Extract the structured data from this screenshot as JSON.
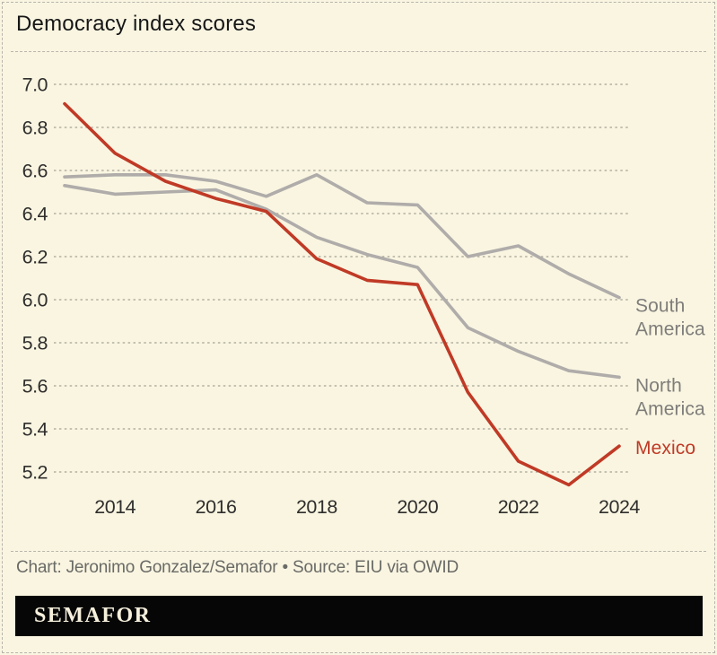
{
  "title": "Democracy index scores",
  "footer": {
    "credit": "Chart: Jeronimo Gonzalez/Semafor • Source: EIU via OWID",
    "brand": "SEMAFOR"
  },
  "colors": {
    "background": "#f9f5e1",
    "mexico_red": "#c03a26",
    "region_gray": "#afacaa",
    "series_label_gray": "#7f7d7a",
    "grid": "#b3b0a1",
    "axis_text": "#2f2e2c",
    "title_text": "#171717",
    "credit_text": "#6a6a66",
    "logo_bar": "#060606",
    "logo_text": "#f5efdc"
  },
  "chart_data": {
    "type": "line",
    "title": "Democracy index scores",
    "x": [
      2013,
      2014,
      2015,
      2016,
      2017,
      2018,
      2019,
      2020,
      2021,
      2022,
      2023,
      2024
    ],
    "x_tick_labels": [
      "2014",
      "2016",
      "2018",
      "2020",
      "2022",
      "2024"
    ],
    "y_tick_labels": [
      "7.0",
      "6.8",
      "6.6",
      "6.4",
      "6.2",
      "6.0",
      "5.8",
      "5.6",
      "5.4",
      "5.2"
    ],
    "ylim": [
      5.1,
      7.05
    ],
    "xlabel": "",
    "ylabel": "",
    "grid": true,
    "legend_position": "right-end-labels",
    "series": [
      {
        "id": "south-america",
        "name": "South America",
        "label_lines": [
          "South",
          "America"
        ],
        "color": "#afacaa",
        "label_color": "#7f7d7a",
        "values": [
          6.57,
          6.58,
          6.58,
          6.55,
          6.48,
          6.58,
          6.45,
          6.44,
          6.2,
          6.25,
          6.12,
          6.01
        ]
      },
      {
        "id": "north-america",
        "name": "North America",
        "label_lines": [
          "North",
          "America"
        ],
        "color": "#afacaa",
        "label_color": "#7f7d7a",
        "values": [
          6.53,
          6.49,
          6.5,
          6.51,
          6.42,
          6.29,
          6.21,
          6.15,
          5.87,
          5.76,
          5.67,
          5.64
        ]
      },
      {
        "id": "mexico",
        "name": "Mexico",
        "label_lines": [
          "Mexico"
        ],
        "color": "#c03a26",
        "label_color": "#c03a26",
        "values": [
          6.91,
          6.68,
          6.55,
          6.47,
          6.41,
          6.19,
          6.09,
          6.07,
          5.57,
          5.25,
          5.14,
          5.32
        ]
      }
    ]
  }
}
